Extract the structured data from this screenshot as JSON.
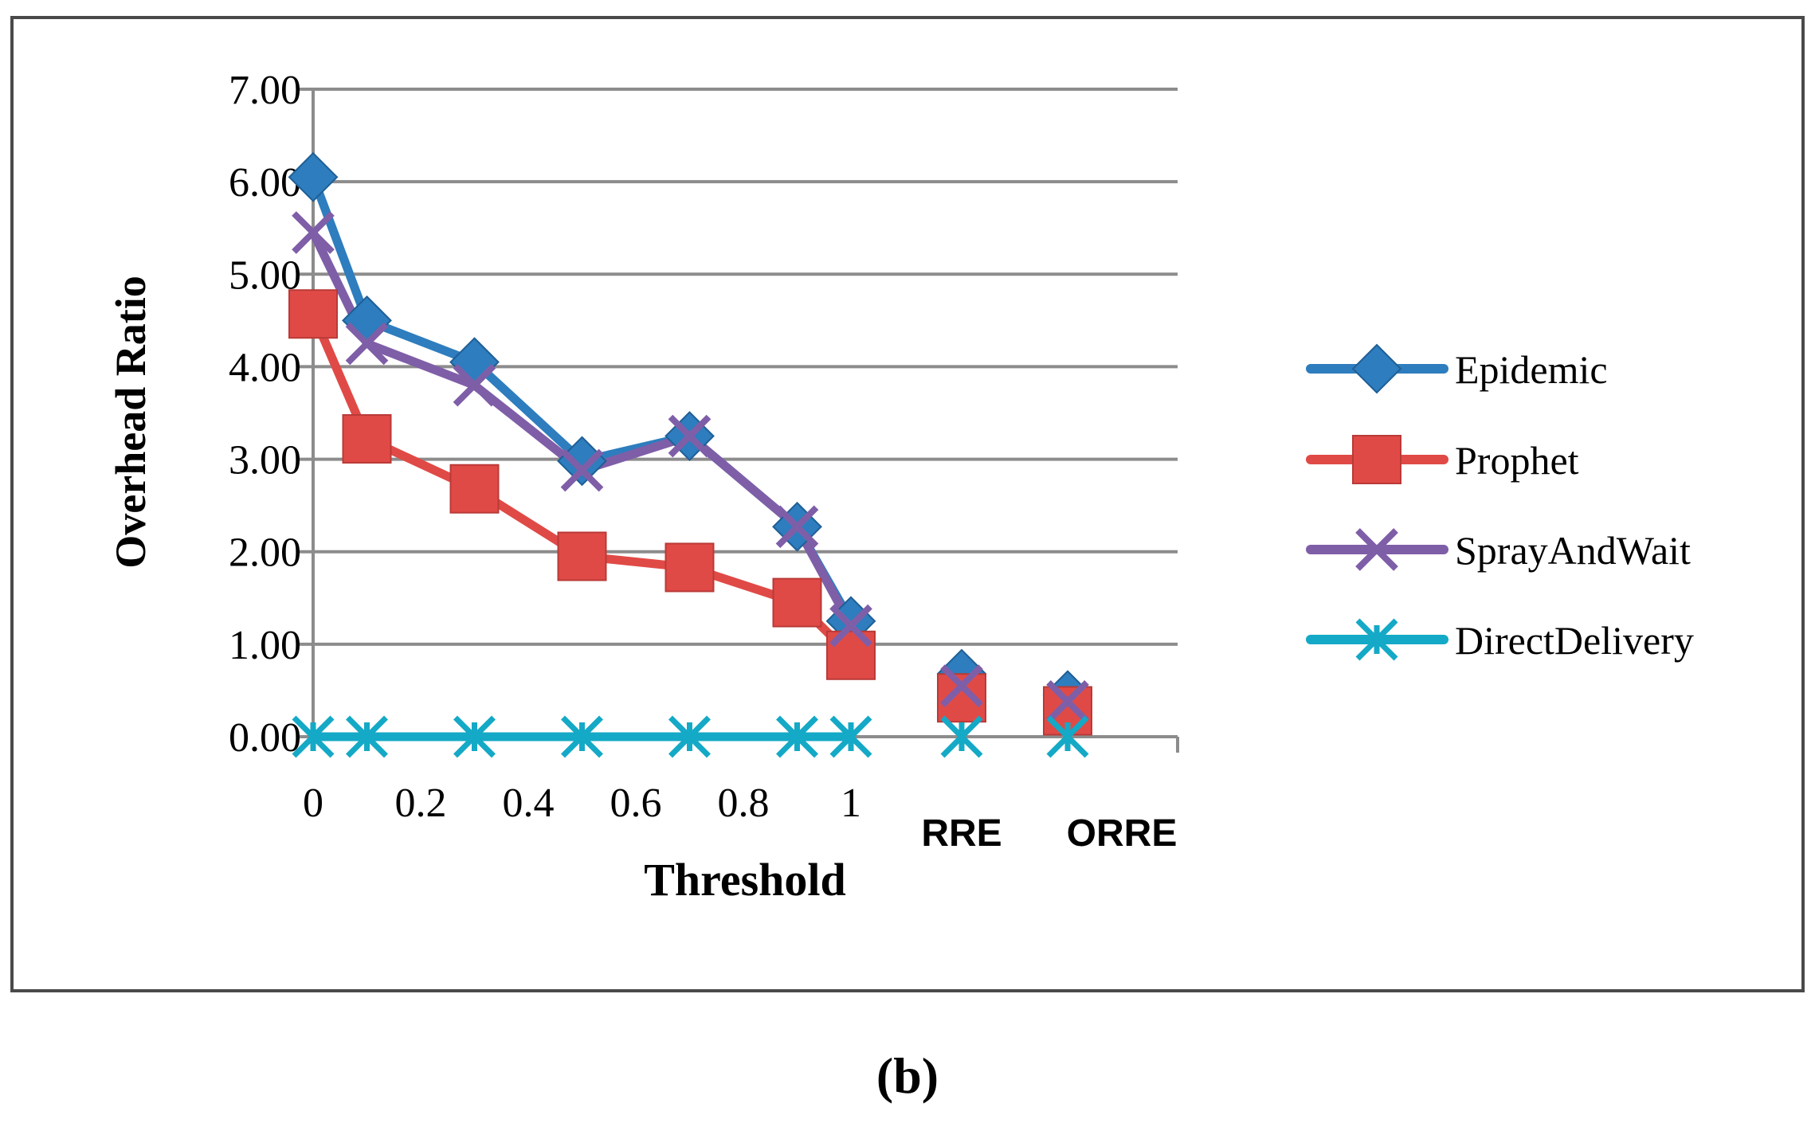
{
  "chart_data": {
    "type": "line",
    "title": "",
    "xlabel": "Threshold",
    "ylabel": "Overhead Ratio",
    "ylim": [
      0,
      7
    ],
    "yticks": [
      "0.00",
      "1.00",
      "2.00",
      "3.00",
      "4.00",
      "5.00",
      "6.00",
      "7.00"
    ],
    "x_tick_labels": [
      "0",
      "0.2",
      "0.4",
      "0.6",
      "0.8",
      "1"
    ],
    "x_tick_values": [
      0,
      0.2,
      0.4,
      0.6,
      0.8,
      1
    ],
    "x": [
      0,
      0.1,
      0.3,
      0.5,
      0.7,
      0.9,
      1
    ],
    "extra_categories": [
      "RRE",
      "ORRE"
    ],
    "series": [
      {
        "name": "Epidemic",
        "color": "#2E7DBE",
        "marker": "diamond",
        "values": [
          6.05,
          4.5,
          4.05,
          2.98,
          3.25,
          2.27,
          1.25
        ],
        "extra_values": [
          0.68,
          0.45
        ]
      },
      {
        "name": "Prophet",
        "color": "#E04A46",
        "marker": "square",
        "values": [
          4.57,
          3.22,
          2.68,
          1.95,
          1.83,
          1.45,
          0.88
        ],
        "extra_values": [
          0.42,
          0.28
        ]
      },
      {
        "name": "SprayAndWait",
        "color": "#7F5EA8",
        "marker": "x",
        "values": [
          5.45,
          4.25,
          3.8,
          2.88,
          3.25,
          2.27,
          1.2
        ],
        "extra_values": [
          0.55,
          0.38
        ]
      },
      {
        "name": "DirectDelivery",
        "color": "#14A9C6",
        "marker": "asterisk",
        "values": [
          0,
          0,
          0,
          0,
          0,
          0,
          0
        ],
        "extra_values": [
          0,
          0
        ]
      }
    ],
    "legend_position": "right",
    "grid": true,
    "caption": "(b)"
  }
}
